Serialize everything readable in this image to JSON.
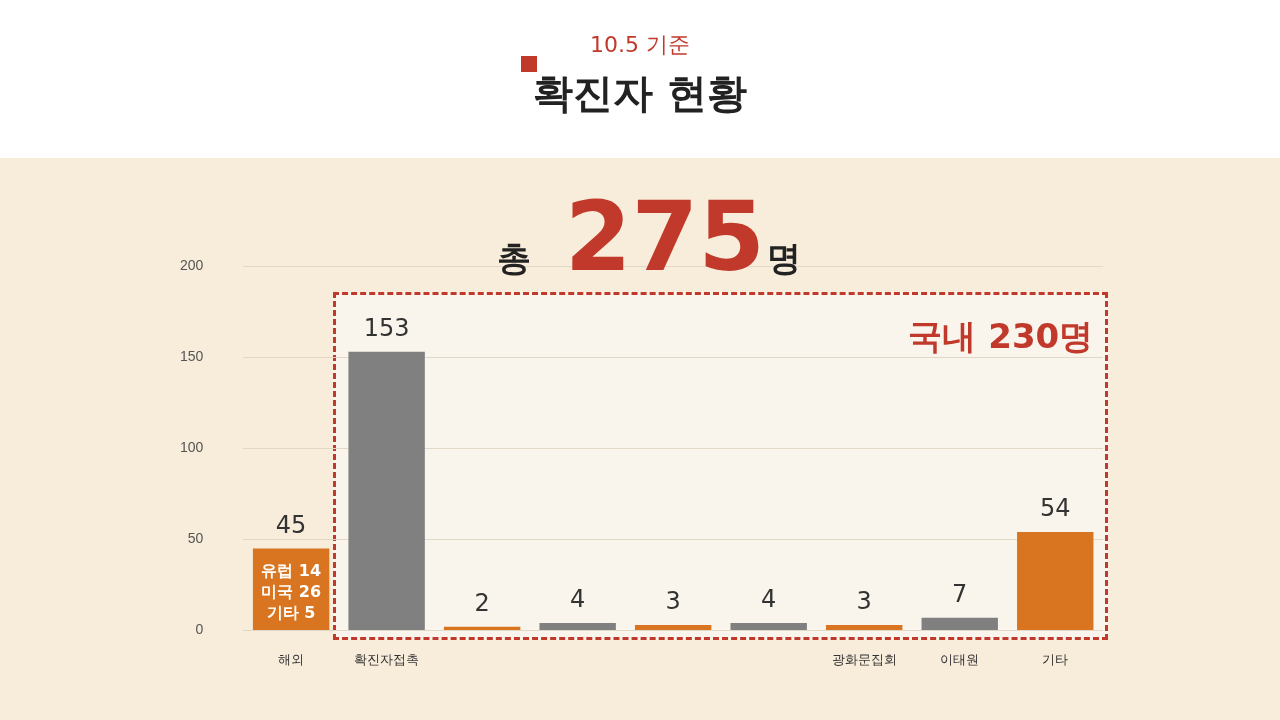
{
  "chart_data": {
    "type": "bar",
    "title": "확진자 현황",
    "subtitle": "10.5 기준",
    "categories": [
      "해외",
      "확진자접촉",
      null,
      null,
      null,
      null,
      "광화문집회",
      "이태원",
      "기타"
    ],
    "values": [
      45,
      153,
      2,
      4,
      3,
      4,
      3,
      7,
      54
    ],
    "colors": [
      "#d97520",
      "#808080",
      "#d97520",
      "#808080",
      "#d97520",
      "#808080",
      "#d97520",
      "#808080",
      "#d97520"
    ],
    "ylim": [
      0,
      200
    ],
    "yticks": [
      0,
      50,
      100,
      150,
      200
    ],
    "grid": "y",
    "data_labels": true,
    "annotations": [
      "총 275명",
      "국내 230명",
      "유럽 14",
      "미국 26",
      "기타 5"
    ]
  }
}
